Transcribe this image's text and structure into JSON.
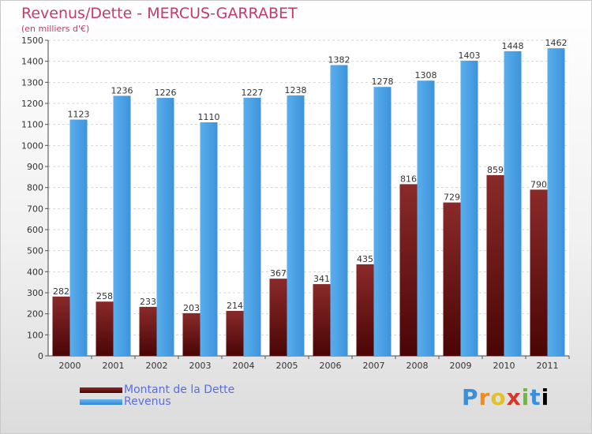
{
  "chart_data": {
    "type": "bar",
    "title": "Revenus/Dette - MERCUS-GARRABET",
    "subtitle": "(en milliers d'€)",
    "categories": [
      "2000",
      "2001",
      "2002",
      "2003",
      "2004",
      "2005",
      "2006",
      "2007",
      "2008",
      "2009",
      "2010",
      "2011"
    ],
    "series": [
      {
        "name": "Montant de la Dette",
        "color": "#7a1a1a",
        "values": [
          282,
          258,
          233,
          203,
          214,
          367,
          341,
          435,
          816,
          729,
          859,
          790
        ]
      },
      {
        "name": "Revenus",
        "color": "#4a9fe6",
        "values": [
          1123,
          1236,
          1226,
          1110,
          1227,
          1238,
          1382,
          1278,
          1308,
          1403,
          1448,
          1462
        ]
      }
    ],
    "ylim": [
      0,
      1500
    ],
    "ytick_step": 100,
    "grid": true,
    "legend_position": "bottom-left"
  },
  "logo": {
    "letters": [
      "P",
      "r",
      "o",
      "x",
      "i",
      "t",
      "i"
    ]
  }
}
